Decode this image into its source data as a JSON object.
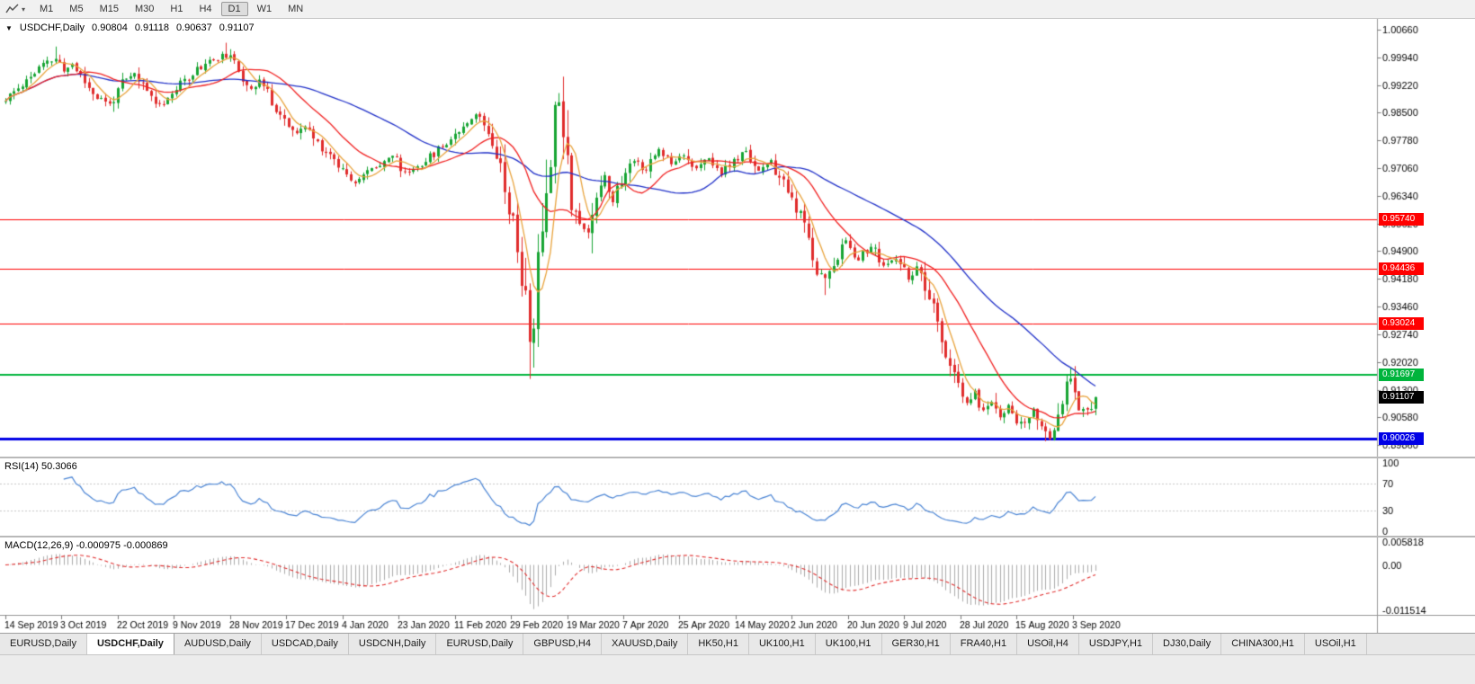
{
  "toolbar": {
    "chart_tool_caret": "▾",
    "timeframes": [
      "M1",
      "M5",
      "M15",
      "M30",
      "H1",
      "H4",
      "D1",
      "W1",
      "MN"
    ],
    "active_timeframe": "D1"
  },
  "header": {
    "collapse_arrow": "▼",
    "symbol": "USDCHF,Daily",
    "open": "0.90804",
    "high": "0.91118",
    "low": "0.90637",
    "close": "0.91107"
  },
  "chart_data": {
    "type": "candlestick",
    "symbol": "USDCHF",
    "timeframe": "Daily",
    "candle_count": 263,
    "y_max": 1.0094,
    "y_min": 0.8956,
    "y_axis_ticks": [
      "1.00660",
      "0.99940",
      "0.99220",
      "0.98500",
      "0.97780",
      "0.97060",
      "0.96340",
      "0.95620",
      "0.94900",
      "0.94180",
      "0.93460",
      "0.92740",
      "0.92020",
      "0.91300",
      "0.90580",
      "0.89860"
    ],
    "x_axis_ticks": [
      "14 Sep 2019",
      "3 Oct 2019",
      "22 Oct 2019",
      "9 Nov 2019",
      "28 Nov 2019",
      "17 Dec 2019",
      "4 Jan 2020",
      "23 Jan 2020",
      "11 Feb 2020",
      "29 Feb 2020",
      "19 Mar 2020",
      "7 Apr 2020",
      "25 Apr 2020",
      "14 May 2020",
      "2 Jun 2020",
      "20 Jun 2020",
      "9 Jul 2020",
      "28 Jul 2020",
      "15 Aug 2020",
      "3 Sep 2020"
    ],
    "price_anchors": [
      [
        0,
        0.988
      ],
      [
        3,
        0.9915
      ],
      [
        6,
        0.9945
      ],
      [
        9,
        0.9975
      ],
      [
        12,
        0.999
      ],
      [
        14,
        0.9958
      ],
      [
        16,
        0.9978
      ],
      [
        19,
        0.993
      ],
      [
        22,
        0.989
      ],
      [
        25,
        0.9872
      ],
      [
        28,
        0.9925
      ],
      [
        31,
        0.995
      ],
      [
        34,
        0.9905
      ],
      [
        37,
        0.9872
      ],
      [
        40,
        0.99
      ],
      [
        44,
        0.9945
      ],
      [
        48,
        0.998
      ],
      [
        53,
        1.0
      ],
      [
        55,
        0.9975
      ],
      [
        57,
        0.9942
      ],
      [
        59,
        0.9915
      ],
      [
        61,
        0.9935
      ],
      [
        64,
        0.988
      ],
      [
        67,
        0.983
      ],
      [
        70,
        0.9792
      ],
      [
        72,
        0.9815
      ],
      [
        75,
        0.977
      ],
      [
        78,
        0.974
      ],
      [
        81,
        0.9705
      ],
      [
        84,
        0.9672
      ],
      [
        87,
        0.9695
      ],
      [
        90,
        0.972
      ],
      [
        93,
        0.974
      ],
      [
        96,
        0.9692
      ],
      [
        99,
        0.9712
      ],
      [
        102,
        0.9735
      ],
      [
        105,
        0.9765
      ],
      [
        108,
        0.9795
      ],
      [
        111,
        0.983
      ],
      [
        113,
        0.9848
      ],
      [
        116,
        0.9805
      ],
      [
        118,
        0.9755
      ],
      [
        120,
        0.9662
      ],
      [
        122,
        0.956
      ],
      [
        124,
        0.9432
      ],
      [
        126,
        0.9262
      ],
      [
        127,
        0.9312
      ],
      [
        128,
        0.9432
      ],
      [
        129,
        0.9555
      ],
      [
        130,
        0.9662
      ],
      [
        131,
        0.9762
      ],
      [
        132,
        0.9845
      ],
      [
        133,
        0.9885
      ],
      [
        134,
        0.9835
      ],
      [
        135,
        0.9722
      ],
      [
        136,
        0.9632
      ],
      [
        138,
        0.9562
      ],
      [
        140,
        0.9532
      ],
      [
        142,
        0.9645
      ],
      [
        144,
        0.969
      ],
      [
        146,
        0.9622
      ],
      [
        148,
        0.9672
      ],
      [
        151,
        0.973
      ],
      [
        154,
        0.9702
      ],
      [
        157,
        0.9755
      ],
      [
        160,
        0.9722
      ],
      [
        163,
        0.9745
      ],
      [
        166,
        0.9702
      ],
      [
        169,
        0.973
      ],
      [
        172,
        0.9692
      ],
      [
        175,
        0.9722
      ],
      [
        178,
        0.9748
      ],
      [
        181,
        0.9702
      ],
      [
        184,
        0.9718
      ],
      [
        187,
        0.9662
      ],
      [
        190,
        0.9602
      ],
      [
        193,
        0.9522
      ],
      [
        195,
        0.9442
      ],
      [
        197,
        0.9418
      ],
      [
        199,
        0.9462
      ],
      [
        202,
        0.9515
      ],
      [
        205,
        0.9472
      ],
      [
        208,
        0.9502
      ],
      [
        211,
        0.9452
      ],
      [
        214,
        0.9466
      ],
      [
        217,
        0.9422
      ],
      [
        219,
        0.9442
      ],
      [
        221,
        0.9392
      ],
      [
        223,
        0.9332
      ],
      [
        225,
        0.9262
      ],
      [
        227,
        0.9192
      ],
      [
        229,
        0.9132
      ],
      [
        231,
        0.9092
      ],
      [
        233,
        0.9122
      ],
      [
        235,
        0.9072
      ],
      [
        237,
        0.9102
      ],
      [
        239,
        0.9062
      ],
      [
        241,
        0.9086
      ],
      [
        243,
        0.9052
      ],
      [
        245,
        0.9036
      ],
      [
        247,
        0.908
      ],
      [
        249,
        0.9022
      ],
      [
        251,
        0.9012
      ],
      [
        253,
        0.907
      ],
      [
        255,
        0.9135
      ],
      [
        256,
        0.916
      ],
      [
        257,
        0.9135
      ],
      [
        258,
        0.9096
      ],
      [
        259,
        0.9072
      ],
      [
        260,
        0.9076
      ],
      [
        261,
        0.909
      ],
      [
        262,
        0.91107
      ]
    ],
    "wick_overrides": [
      {
        "i": 12,
        "high": 1.0022
      },
      {
        "i": 53,
        "high": 1.0032
      },
      {
        "i": 126,
        "low": 0.9158
      },
      {
        "i": 133,
        "high": 0.9901
      },
      {
        "i": 197,
        "low": 0.9376
      },
      {
        "i": 250,
        "low": 0.8996
      },
      {
        "i": 256,
        "high": 0.9186
      }
    ],
    "colors": {
      "up": "#17a433",
      "down": "#e02c2c",
      "ma_fast": "#e8a33d",
      "ma_mid": "#f01f1f",
      "ma_slow": "#2030c8",
      "rsi": "#4a84d4",
      "macd_hist": "#ababab",
      "macd_signal": "#e02c2c",
      "level_red": "#ff0000",
      "level_green": "#00b43c",
      "level_blue": "#0000e6"
    },
    "levels": [
      {
        "price": 0.9574,
        "label": "0.95740",
        "color": "#ff0000",
        "thickness": 1
      },
      {
        "price": 0.94436,
        "label": "0.94436",
        "color": "#ff0000",
        "thickness": 1
      },
      {
        "price": 0.93024,
        "label": "0.93024",
        "color": "#ff0000",
        "thickness": 1
      },
      {
        "price": 0.91697,
        "label": "0.91697",
        "color": "#00b43c",
        "thickness": 2
      },
      {
        "price": 0.90026,
        "label": "0.90026",
        "color": "#0000e6",
        "thickness": 3
      }
    ],
    "current_price": {
      "price": 0.91107,
      "label": "0.91107",
      "color": "#000000"
    },
    "indicators": {
      "ma_periods": {
        "fast": 6,
        "mid": 18,
        "slow": 45
      },
      "rsi": {
        "label": "RSI(14) 50.3066",
        "period": 14,
        "value": 50.3066,
        "levels": [
          30,
          70
        ],
        "axis_ticks": [
          "100",
          "70",
          "30",
          "0"
        ],
        "range": [
          0,
          100
        ]
      },
      "macd": {
        "label": "MACD(12,26,9) -0.000975 -0.000869",
        "fast": 12,
        "slow": 26,
        "signal": 9,
        "main_value": -0.000975,
        "signal_value": -0.000869,
        "axis_ticks": [
          "0.005818",
          "0.00",
          "-0.011514"
        ],
        "range": [
          -0.011514,
          0.005818
        ]
      }
    }
  },
  "tabs": [
    {
      "label": "EURUSD,Daily",
      "active": false
    },
    {
      "label": "USDCHF,Daily",
      "active": true
    },
    {
      "label": "AUDUSD,Daily",
      "active": false
    },
    {
      "label": "USDCAD,Daily",
      "active": false
    },
    {
      "label": "USDCNH,Daily",
      "active": false
    },
    {
      "label": "EURUSD,Daily",
      "active": false
    },
    {
      "label": "GBPUSD,H4",
      "active": false
    },
    {
      "label": "XAUUSD,Daily",
      "active": false
    },
    {
      "label": "HK50,H1",
      "active": false
    },
    {
      "label": "UK100,H1",
      "active": false
    },
    {
      "label": "UK100,H1",
      "active": false
    },
    {
      "label": "GER30,H1",
      "active": false
    },
    {
      "label": "FRA40,H1",
      "active": false
    },
    {
      "label": "USOil,H4",
      "active": false
    },
    {
      "label": "USDJPY,H1",
      "active": false
    },
    {
      "label": "DJ30,Daily",
      "active": false
    },
    {
      "label": "CHINA300,H1",
      "active": false
    },
    {
      "label": "USOil,H1",
      "active": false
    }
  ]
}
